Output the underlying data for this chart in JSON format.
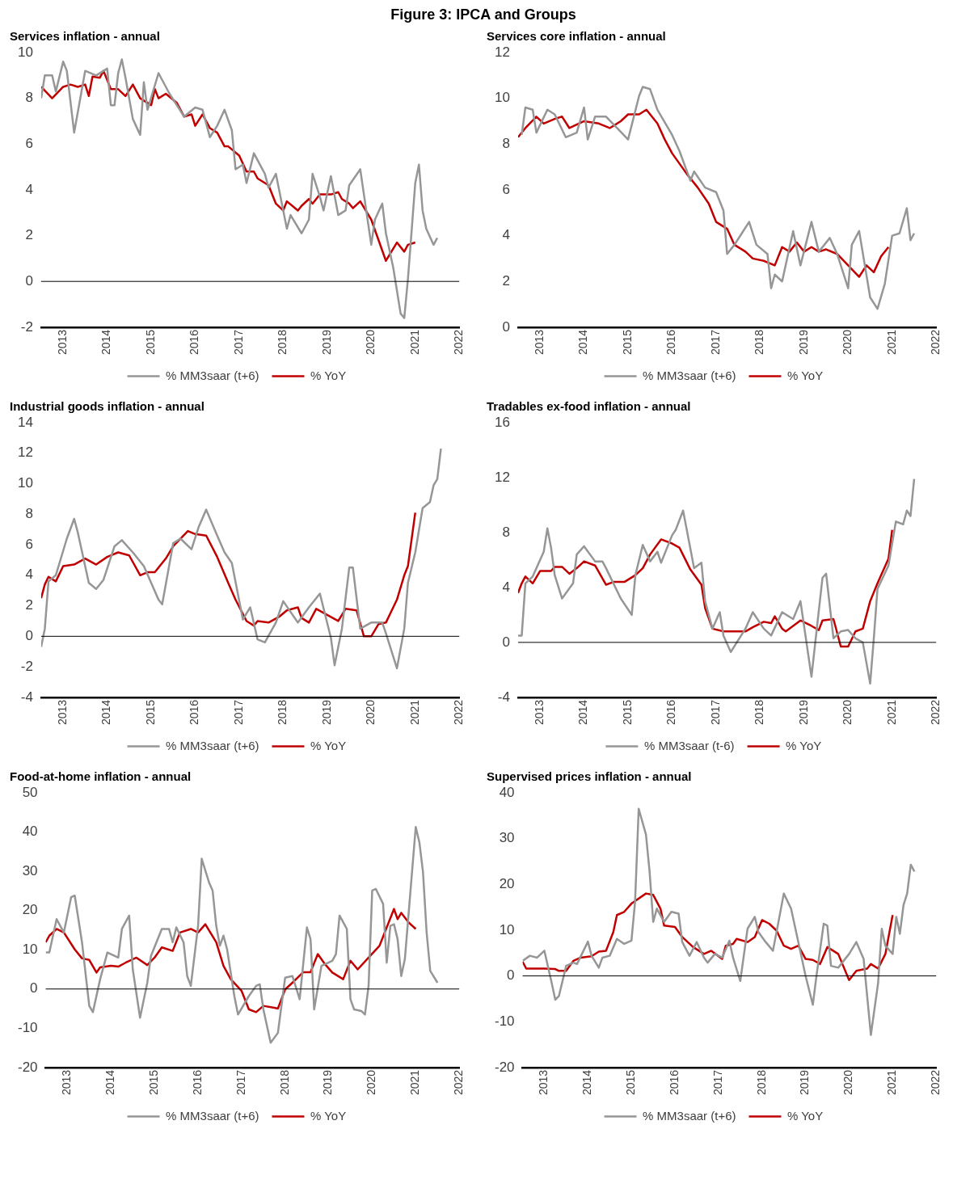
{
  "chart_data": [
    {
      "type": "line",
      "title": "Services inflation - annual",
      "annotations": [
        "Figure 3: IPCA and Groups"
      ],
      "legend": "bottom",
      "marker": "none",
      "xlim": [
        "2012-07",
        "2022-01"
      ],
      "xticks": [
        {
          "value": "2013-01",
          "label": "2013"
        },
        {
          "value": "2014-01",
          "label": "2014"
        },
        {
          "value": "2015-01",
          "label": "2015"
        },
        {
          "value": "2016-01",
          "label": "2016"
        },
        {
          "value": "2017-01",
          "label": "2017"
        },
        {
          "value": "2018-01",
          "label": "2018"
        },
        {
          "value": "2019-01",
          "label": "2019"
        },
        {
          "value": "2020-01",
          "label": "2020"
        },
        {
          "value": "2021-01",
          "label": "2021"
        },
        {
          "value": "2022-01",
          "label": "2022"
        }
      ],
      "ylim": [
        -2,
        10
      ],
      "yticks": [
        -2,
        0,
        2,
        4,
        6,
        8,
        10
      ],
      "ref_lines": [
        {
          "axis": "y",
          "value": 0,
          "color": "#000000"
        }
      ],
      "series": [
        {
          "name": "% MM3saar (t+6)",
          "color": "#969696",
          "x": [
            "2012-07",
            "2012-08",
            "2012-10",
            "2012-11",
            "2013-01",
            "2013-02",
            "2013-04",
            "2013-07",
            "2013-10",
            "2014-01",
            "2014-02",
            "2014-03",
            "2014-04",
            "2014-05",
            "2014-06",
            "2014-08",
            "2014-10",
            "2014-11",
            "2014-12",
            "2015-03",
            "2015-06",
            "2015-10",
            "2016-01",
            "2016-03",
            "2016-05",
            "2016-07",
            "2016-09",
            "2016-11",
            "2016-12",
            "2017-02",
            "2017-03",
            "2017-05",
            "2017-08",
            "2017-09",
            "2017-11",
            "2018-02",
            "2018-03",
            "2018-06",
            "2018-08",
            "2018-09",
            "2018-11",
            "2018-12",
            "2019-02",
            "2019-04",
            "2019-06",
            "2019-07",
            "2019-10",
            "2020-01",
            "2020-02",
            "2020-04",
            "2020-05",
            "2020-07",
            "2020-09",
            "2020-10",
            "2020-11",
            "2021-01",
            "2021-02",
            "2021-03",
            "2021-04",
            "2021-06",
            "2021-07"
          ],
          "values": [
            8.0,
            9.0,
            9.0,
            8.3,
            9.6,
            9.2,
            6.5,
            9.2,
            9.0,
            9.3,
            7.7,
            7.7,
            9.1,
            9.7,
            8.9,
            7.1,
            6.4,
            8.7,
            7.5,
            9.1,
            8.2,
            7.2,
            7.6,
            7.5,
            6.3,
            6.8,
            7.5,
            6.6,
            4.9,
            5.1,
            4.3,
            5.6,
            4.7,
            4.1,
            4.7,
            2.3,
            2.9,
            2.1,
            2.7,
            4.7,
            3.7,
            3.1,
            4.6,
            2.9,
            3.1,
            4.2,
            4.9,
            1.6,
            2.7,
            3.4,
            2.1,
            0.6,
            -1.4,
            -1.6,
            0.1,
            4.3,
            5.1,
            3.1,
            2.3,
            1.6,
            1.9
          ]
        },
        {
          "name": "% YoY",
          "color": "#c00000",
          "x": [
            "2012-07",
            "2012-10",
            "2013-01",
            "2013-03",
            "2013-05",
            "2013-07",
            "2013-08",
            "2013-09",
            "2013-11",
            "2013-12",
            "2014-02",
            "2014-04",
            "2014-06",
            "2014-08",
            "2014-10",
            "2015-01",
            "2015-02",
            "2015-03",
            "2015-05",
            "2015-08",
            "2015-10",
            "2015-12",
            "2016-01",
            "2016-03",
            "2016-05",
            "2016-07",
            "2016-09",
            "2016-10",
            "2017-01",
            "2017-03",
            "2017-05",
            "2017-06",
            "2017-09",
            "2017-11",
            "2018-01",
            "2018-02",
            "2018-05",
            "2018-06",
            "2018-08",
            "2018-09",
            "2018-11",
            "2019-02",
            "2019-04",
            "2019-05",
            "2019-07",
            "2019-08",
            "2019-10",
            "2020-01",
            "2020-05",
            "2020-08",
            "2020-10",
            "2020-11",
            "2021-01"
          ],
          "values": [
            8.5,
            8.0,
            8.5,
            8.6,
            8.5,
            8.6,
            8.1,
            8.95,
            8.9,
            9.2,
            8.4,
            8.4,
            8.1,
            8.6,
            8.0,
            7.7,
            8.4,
            8.0,
            8.2,
            7.8,
            7.2,
            7.3,
            6.8,
            7.3,
            6.7,
            6.5,
            5.9,
            5.9,
            5.5,
            4.8,
            4.8,
            4.5,
            4.2,
            3.4,
            3.1,
            3.5,
            3.1,
            3.3,
            3.6,
            3.4,
            3.8,
            3.8,
            3.9,
            3.6,
            3.4,
            3.2,
            3.5,
            2.7,
            0.9,
            1.7,
            1.3,
            1.6,
            1.7
          ]
        }
      ]
    },
    {
      "type": "line",
      "title": "Services core inflation - annual",
      "legend": "bottom",
      "marker": "none",
      "xlim": [
        "2012-07",
        "2022-01"
      ],
      "xticks": [
        {
          "value": "2013-01",
          "label": "2013"
        },
        {
          "value": "2014-01",
          "label": "2014"
        },
        {
          "value": "2015-01",
          "label": "2015"
        },
        {
          "value": "2016-01",
          "label": "2016"
        },
        {
          "value": "2017-01",
          "label": "2017"
        },
        {
          "value": "2018-01",
          "label": "2018"
        },
        {
          "value": "2019-01",
          "label": "2019"
        },
        {
          "value": "2020-01",
          "label": "2020"
        },
        {
          "value": "2021-01",
          "label": "2021"
        },
        {
          "value": "2022-01",
          "label": "2022"
        }
      ],
      "ylim": [
        0,
        12
      ],
      "yticks": [
        0,
        2,
        4,
        6,
        8,
        10,
        12
      ],
      "series": [
        {
          "name": "% MM3saar (t+6)",
          "color": "#969696",
          "x": [
            "2012-08",
            "2012-09",
            "2012-11",
            "2012-12",
            "2013-03",
            "2013-05",
            "2013-08",
            "2013-11",
            "2014-01",
            "2014-02",
            "2014-04",
            "2014-07",
            "2014-10",
            "2015-01",
            "2015-04",
            "2015-05",
            "2015-07",
            "2015-09",
            "2016-01",
            "2016-03",
            "2016-06",
            "2016-07",
            "2016-10",
            "2017-01",
            "2017-03",
            "2017-04",
            "2017-06",
            "2017-08",
            "2017-10",
            "2017-12",
            "2018-03",
            "2018-04",
            "2018-05",
            "2018-07",
            "2018-10",
            "2018-12",
            "2019-03",
            "2019-05",
            "2019-08",
            "2019-10",
            "2020-01",
            "2020-02",
            "2020-04",
            "2020-07",
            "2020-09",
            "2020-11",
            "2021-01",
            "2021-03",
            "2021-05",
            "2021-06",
            "2021-07"
          ],
          "values": [
            8.4,
            9.6,
            9.5,
            8.5,
            9.5,
            9.3,
            8.3,
            8.5,
            9.6,
            8.2,
            9.2,
            9.2,
            8.7,
            8.2,
            10.1,
            10.5,
            10.4,
            9.5,
            8.4,
            7.7,
            6.4,
            6.8,
            6.1,
            5.9,
            5.1,
            3.2,
            3.6,
            4.1,
            4.6,
            3.6,
            3.2,
            1.7,
            2.3,
            2.0,
            4.2,
            2.7,
            4.6,
            3.3,
            3.9,
            3.2,
            1.7,
            3.6,
            4.2,
            1.3,
            0.8,
            1.9,
            4.0,
            4.1,
            5.2,
            3.8,
            4.1
          ]
        },
        {
          "name": "% YoY",
          "color": "#c00000",
          "x": [
            "2012-07",
            "2012-09",
            "2012-12",
            "2013-02",
            "2013-05",
            "2013-07",
            "2013-09",
            "2014-01",
            "2014-05",
            "2014-08",
            "2014-11",
            "2015-01",
            "2015-04",
            "2015-06",
            "2015-09",
            "2015-11",
            "2016-01",
            "2016-05",
            "2016-08",
            "2016-11",
            "2017-01",
            "2017-04",
            "2017-06",
            "2017-09",
            "2017-11",
            "2018-02",
            "2018-05",
            "2018-07",
            "2018-09",
            "2018-11",
            "2019-01",
            "2019-03",
            "2019-05",
            "2019-07",
            "2019-10",
            "2020-01",
            "2020-04",
            "2020-06",
            "2020-08",
            "2020-10",
            "2020-12"
          ],
          "values": [
            8.3,
            8.7,
            9.2,
            8.9,
            9.1,
            9.2,
            8.7,
            9.0,
            8.9,
            8.7,
            9.0,
            9.3,
            9.3,
            9.5,
            8.9,
            8.2,
            7.6,
            6.7,
            6.1,
            5.4,
            4.6,
            4.3,
            3.6,
            3.3,
            3.0,
            2.9,
            2.7,
            3.5,
            3.3,
            3.7,
            3.3,
            3.5,
            3.3,
            3.4,
            3.2,
            2.7,
            2.2,
            2.7,
            2.4,
            3.1,
            3.5
          ]
        }
      ]
    },
    {
      "type": "line",
      "title": "Industrial goods inflation - annual",
      "legend": "bottom",
      "marker": "none",
      "xlim": [
        "2012-07",
        "2022-01"
      ],
      "xticks": [
        {
          "value": "2013-01",
          "label": "2013"
        },
        {
          "value": "2014-01",
          "label": "2014"
        },
        {
          "value": "2015-01",
          "label": "2015"
        },
        {
          "value": "2016-01",
          "label": "2016"
        },
        {
          "value": "2017-01",
          "label": "2017"
        },
        {
          "value": "2018-01",
          "label": "2018"
        },
        {
          "value": "2019-01",
          "label": "2019"
        },
        {
          "value": "2020-01",
          "label": "2020"
        },
        {
          "value": "2021-01",
          "label": "2021"
        },
        {
          "value": "2022-01",
          "label": "2022"
        }
      ],
      "ylim": [
        -4,
        14
      ],
      "yticks": [
        -4,
        -2,
        0,
        2,
        4,
        6,
        8,
        10,
        12,
        14
      ],
      "ref_lines": [
        {
          "axis": "y",
          "value": 0,
          "color": "#000000"
        }
      ],
      "series": [
        {
          "name": "% MM3saar (t+6)",
          "color": "#969696",
          "x": [
            "2012-07",
            "2012-08",
            "2012-09",
            "2012-11",
            "2013-02",
            "2013-04",
            "2013-05",
            "2013-08",
            "2013-10",
            "2013-12",
            "2014-03",
            "2014-05",
            "2014-08",
            "2014-11",
            "2015-01",
            "2015-03",
            "2015-04",
            "2015-07",
            "2015-09",
            "2015-12",
            "2016-02",
            "2016-04",
            "2016-07",
            "2016-09",
            "2016-11",
            "2017-02",
            "2017-04",
            "2017-06",
            "2017-08",
            "2017-11",
            "2018-01",
            "2018-03",
            "2018-05",
            "2018-08",
            "2018-11",
            "2019-02",
            "2019-03",
            "2019-05",
            "2019-07",
            "2019-08",
            "2019-10",
            "2020-01",
            "2020-04",
            "2020-05",
            "2020-08",
            "2020-10",
            "2020-11",
            "2021-01",
            "2021-03",
            "2021-05",
            "2021-06",
            "2021-07",
            "2021-08"
          ],
          "values": [
            -0.7,
            0.5,
            3.6,
            4.0,
            6.4,
            7.7,
            6.8,
            3.5,
            3.1,
            3.7,
            5.9,
            6.3,
            5.5,
            4.6,
            3.5,
            2.4,
            2.1,
            6.1,
            6.4,
            5.7,
            7.2,
            8.3,
            6.6,
            5.5,
            4.8,
            1.1,
            1.9,
            -0.2,
            -0.4,
            0.9,
            2.3,
            1.6,
            0.9,
            1.9,
            2.8,
            -0.1,
            -1.9,
            0.5,
            4.5,
            4.5,
            0.5,
            0.9,
            0.9,
            0.2,
            -2.1,
            0.5,
            3.5,
            5.5,
            8.4,
            8.8,
            9.9,
            10.3,
            12.3
          ]
        },
        {
          "name": "% YoY",
          "color": "#c00000",
          "x": [
            "2012-07",
            "2012-08",
            "2012-09",
            "2012-11",
            "2013-01",
            "2013-04",
            "2013-07",
            "2013-10",
            "2014-01",
            "2014-04",
            "2014-07",
            "2014-10",
            "2014-12",
            "2015-02",
            "2015-05",
            "2015-07",
            "2015-11",
            "2016-01",
            "2016-04",
            "2016-07",
            "2016-10",
            "2016-12",
            "2017-03",
            "2017-05",
            "2017-06",
            "2017-09",
            "2017-12",
            "2018-02",
            "2018-05",
            "2018-06",
            "2018-08",
            "2018-10",
            "2019-01",
            "2019-04",
            "2019-06",
            "2019-09",
            "2019-11",
            "2020-01",
            "2020-03",
            "2020-05",
            "2020-08",
            "2020-10",
            "2020-11",
            "2021-01"
          ],
          "values": [
            2.5,
            3.4,
            3.9,
            3.6,
            4.6,
            4.7,
            5.1,
            4.7,
            5.2,
            5.5,
            5.3,
            4.0,
            4.2,
            4.2,
            5.1,
            5.9,
            6.9,
            6.7,
            6.6,
            5.2,
            3.5,
            2.4,
            1.0,
            0.7,
            1.0,
            0.9,
            1.3,
            1.7,
            1.9,
            1.2,
            0.9,
            1.8,
            1.4,
            1.0,
            1.8,
            1.7,
            0.0,
            0.0,
            0.8,
            0.9,
            2.4,
            4.0,
            4.6,
            8.1
          ]
        }
      ]
    },
    {
      "type": "line",
      "title": "Tradables ex-food inflation - annual",
      "legend": "bottom",
      "marker": "none",
      "xlim": [
        "2012-07",
        "2022-01"
      ],
      "xticks": [
        {
          "value": "2013-01",
          "label": "2013"
        },
        {
          "value": "2014-01",
          "label": "2014"
        },
        {
          "value": "2015-01",
          "label": "2015"
        },
        {
          "value": "2016-01",
          "label": "2016"
        },
        {
          "value": "2017-01",
          "label": "2017"
        },
        {
          "value": "2018-01",
          "label": "2018"
        },
        {
          "value": "2019-01",
          "label": "2019"
        },
        {
          "value": "2020-01",
          "label": "2020"
        },
        {
          "value": "2021-01",
          "label": "2021"
        },
        {
          "value": "2022-01",
          "label": "2022"
        }
      ],
      "ylim": [
        -4,
        16
      ],
      "yticks": [
        -4,
        0,
        4,
        8,
        12,
        16
      ],
      "ref_lines": [
        {
          "axis": "y",
          "value": 0,
          "color": "#000000"
        }
      ],
      "series": [
        {
          "name": "% MM3saar (t-6)",
          "color": "#969696",
          "x": [
            "2012-07",
            "2012-08",
            "2012-09",
            "2012-11",
            "2013-02",
            "2013-03",
            "2013-04",
            "2013-05",
            "2013-07",
            "2013-10",
            "2013-11",
            "2014-01",
            "2014-04",
            "2014-06",
            "2014-07",
            "2014-11",
            "2015-02",
            "2015-03",
            "2015-05",
            "2015-07",
            "2015-09",
            "2015-10",
            "2016-01",
            "2016-02",
            "2016-04",
            "2016-07",
            "2016-09",
            "2016-10",
            "2016-12",
            "2017-02",
            "2017-03",
            "2017-05",
            "2017-09",
            "2017-11",
            "2018-02",
            "2018-04",
            "2018-07",
            "2018-10",
            "2018-12",
            "2019-03",
            "2019-06",
            "2019-07",
            "2019-09",
            "2019-11",
            "2020-01",
            "2020-03",
            "2020-05",
            "2020-07",
            "2020-08",
            "2020-09",
            "2020-12",
            "2021-02",
            "2021-04",
            "2021-05",
            "2021-06",
            "2021-07"
          ],
          "values": [
            0.5,
            0.5,
            4.3,
            4.8,
            6.6,
            8.3,
            6.9,
            4.9,
            3.2,
            4.3,
            6.4,
            7.0,
            5.9,
            5.9,
            5.4,
            3.2,
            2.0,
            4.9,
            7.1,
            5.9,
            6.6,
            5.8,
            7.8,
            8.2,
            9.6,
            5.4,
            5.8,
            3.0,
            1.0,
            2.2,
            0.5,
            -0.7,
            1.0,
            2.2,
            1.0,
            0.5,
            2.2,
            1.7,
            3.0,
            -2.5,
            4.7,
            5.0,
            0.3,
            0.8,
            0.9,
            0.3,
            0.0,
            -3.0,
            0.3,
            3.9,
            5.6,
            8.8,
            8.6,
            9.6,
            9.2,
            11.9
          ]
        },
        {
          "name": "% YoY",
          "color": "#c00000",
          "x": [
            "2012-07",
            "2012-08",
            "2012-09",
            "2012-11",
            "2013-01",
            "2013-04",
            "2013-05",
            "2013-07",
            "2013-09",
            "2013-11",
            "2014-01",
            "2014-04",
            "2014-07",
            "2014-09",
            "2014-12",
            "2015-03",
            "2015-05",
            "2015-07",
            "2015-10",
            "2016-01",
            "2016-03",
            "2016-06",
            "2016-09",
            "2016-10",
            "2016-12",
            "2017-03",
            "2017-05",
            "2017-09",
            "2017-11",
            "2018-02",
            "2018-04",
            "2018-05",
            "2018-07",
            "2018-08",
            "2018-12",
            "2019-03",
            "2019-05",
            "2019-06",
            "2019-09",
            "2019-11",
            "2020-01",
            "2020-03",
            "2020-05",
            "2020-07",
            "2020-09",
            "2020-12",
            "2021-01"
          ],
          "values": [
            3.6,
            4.3,
            4.8,
            4.3,
            5.2,
            5.2,
            5.5,
            5.5,
            5.0,
            5.4,
            5.9,
            5.6,
            4.2,
            4.4,
            4.4,
            4.9,
            5.4,
            6.4,
            7.5,
            7.2,
            6.9,
            5.3,
            4.2,
            2.5,
            1.0,
            0.8,
            0.8,
            0.8,
            1.1,
            1.5,
            1.4,
            1.9,
            1.0,
            0.8,
            1.6,
            1.2,
            0.9,
            1.6,
            1.7,
            -0.3,
            -0.3,
            0.8,
            1.0,
            3.0,
            4.3,
            6.1,
            8.2
          ]
        }
      ]
    },
    {
      "type": "line",
      "title": "Food-at-home inflation - annual",
      "legend": "bottom",
      "marker": "none",
      "xlim": [
        "2012-07",
        "2022-01"
      ],
      "xticks": [
        {
          "value": "2013-01",
          "label": "2013"
        },
        {
          "value": "2014-01",
          "label": "2014"
        },
        {
          "value": "2015-01",
          "label": "2015"
        },
        {
          "value": "2016-01",
          "label": "2016"
        },
        {
          "value": "2017-01",
          "label": "2017"
        },
        {
          "value": "2018-01",
          "label": "2018"
        },
        {
          "value": "2019-01",
          "label": "2019"
        },
        {
          "value": "2020-01",
          "label": "2020"
        },
        {
          "value": "2021-01",
          "label": "2021"
        },
        {
          "value": "2022-01",
          "label": "2022"
        }
      ],
      "ylim": [
        -20,
        50
      ],
      "yticks": [
        -20,
        -10,
        0,
        10,
        20,
        30,
        40,
        50
      ],
      "ref_lines": [
        {
          "axis": "y",
          "value": 0,
          "color": "#000000"
        }
      ],
      "series": [
        {
          "name": "% MM3saar (t+6)",
          "color": "#969696",
          "x": [
            "2012-07",
            "2012-08",
            "2012-10",
            "2012-12",
            "2013-02",
            "2013-03",
            "2013-05",
            "2013-07",
            "2013-08",
            "2013-10",
            "2013-12",
            "2014-03",
            "2014-04",
            "2014-06",
            "2014-07",
            "2014-09",
            "2014-11",
            "2014-12",
            "2015-03",
            "2015-05",
            "2015-06",
            "2015-07",
            "2015-09",
            "2015-10",
            "2015-11",
            "2016-01",
            "2016-02",
            "2016-04",
            "2016-05",
            "2016-06",
            "2016-07",
            "2016-08",
            "2016-09",
            "2016-11",
            "2016-12",
            "2017-03",
            "2017-05",
            "2017-06",
            "2017-07",
            "2017-09",
            "2017-11",
            "2018-01",
            "2018-03",
            "2018-05",
            "2018-07",
            "2018-08",
            "2018-09",
            "2018-11",
            "2019-02",
            "2019-03",
            "2019-04",
            "2019-06",
            "2019-07",
            "2019-08",
            "2019-10",
            "2019-11",
            "2019-12",
            "2020-01",
            "2020-02",
            "2020-04",
            "2020-05",
            "2020-06",
            "2020-07",
            "2020-08",
            "2020-09",
            "2020-10",
            "2021-01",
            "2021-02",
            "2021-03",
            "2021-04",
            "2021-05",
            "2021-07"
          ],
          "values": [
            9.3,
            9.3,
            17.8,
            14.4,
            23.4,
            23.8,
            11.9,
            -4.3,
            -5.9,
            2.5,
            9.3,
            8.0,
            15.3,
            18.7,
            5.0,
            -7.3,
            1.6,
            8.4,
            15.3,
            15.3,
            11.9,
            15.7,
            11.9,
            3.3,
            0.8,
            16.1,
            33.2,
            27.2,
            25.1,
            16.1,
            11.0,
            13.6,
            10.1,
            -1.8,
            -6.5,
            -1.8,
            0.8,
            1.2,
            -5.2,
            -13.7,
            -11.2,
            2.9,
            3.3,
            -2.6,
            15.7,
            12.7,
            -5.2,
            5.9,
            7.2,
            8.9,
            18.7,
            15.3,
            -2.6,
            -5.2,
            -5.6,
            -6.5,
            0.8,
            25.1,
            25.5,
            21.7,
            6.7,
            16.1,
            16.5,
            12.7,
            3.3,
            7.6,
            41.3,
            37.4,
            29.8,
            14.4,
            4.6,
            1.6
          ]
        },
        {
          "name": "% YoY",
          "color": "#c00000",
          "x": [
            "2012-07",
            "2012-08",
            "2012-10",
            "2012-12",
            "2013-03",
            "2013-05",
            "2013-07",
            "2013-09",
            "2013-10",
            "2014-01",
            "2014-03",
            "2014-05",
            "2014-08",
            "2014-11",
            "2015-01",
            "2015-03",
            "2015-06",
            "2015-08",
            "2015-11",
            "2016-01",
            "2016-03",
            "2016-06",
            "2016-08",
            "2016-10",
            "2017-01",
            "2017-03",
            "2017-05",
            "2017-07",
            "2017-10",
            "2017-11",
            "2018-01",
            "2018-03",
            "2018-06",
            "2018-08",
            "2018-10",
            "2018-12",
            "2019-02",
            "2019-05",
            "2019-07",
            "2019-09",
            "2019-12",
            "2020-03",
            "2020-05",
            "2020-07",
            "2020-08",
            "2020-09",
            "2020-11",
            "2021-01"
          ],
          "values": [
            11.9,
            13.6,
            15.3,
            14.4,
            10.1,
            7.8,
            7.4,
            4.2,
            5.5,
            5.9,
            5.7,
            6.7,
            8.0,
            6.1,
            8.0,
            10.6,
            9.7,
            14.4,
            15.3,
            14.4,
            16.5,
            11.9,
            5.9,
            2.5,
            -0.5,
            -5.2,
            -5.9,
            -4.3,
            -4.8,
            -5.0,
            -0.1,
            1.6,
            4.3,
            4.3,
            8.9,
            6.3,
            4.2,
            2.5,
            7.2,
            5.0,
            8.0,
            11.0,
            15.7,
            20.4,
            17.8,
            19.4,
            17.0,
            15.3
          ]
        }
      ]
    },
    {
      "type": "line",
      "title": "Supervised prices inflation - annual",
      "legend": "bottom",
      "marker": "none",
      "xlim": [
        "2012-07",
        "2022-01"
      ],
      "xticks": [
        {
          "value": "2013-01",
          "label": "2013"
        },
        {
          "value": "2014-01",
          "label": "2014"
        },
        {
          "value": "2015-01",
          "label": "2015"
        },
        {
          "value": "2016-01",
          "label": "2016"
        },
        {
          "value": "2017-01",
          "label": "2017"
        },
        {
          "value": "2018-01",
          "label": "2018"
        },
        {
          "value": "2019-01",
          "label": "2019"
        },
        {
          "value": "2020-01",
          "label": "2020"
        },
        {
          "value": "2021-01",
          "label": "2021"
        },
        {
          "value": "2022-01",
          "label": "2022"
        }
      ],
      "ylim": [
        -20,
        40
      ],
      "yticks": [
        -20,
        -10,
        0,
        10,
        20,
        30,
        40
      ],
      "ref_lines": [
        {
          "axis": "y",
          "value": 0,
          "color": "#000000"
        }
      ],
      "series": [
        {
          "name": "% MM3saar (t+6)",
          "color": "#969696",
          "x": [
            "2012-07",
            "2012-09",
            "2012-11",
            "2013-01",
            "2013-03",
            "2013-04",
            "2013-05",
            "2013-07",
            "2013-09",
            "2013-10",
            "2014-01",
            "2014-02",
            "2014-04",
            "2014-05",
            "2014-07",
            "2014-09",
            "2014-11",
            "2015-01",
            "2015-02",
            "2015-03",
            "2015-05",
            "2015-06",
            "2015-07",
            "2015-08",
            "2015-10",
            "2015-12",
            "2016-02",
            "2016-03",
            "2016-05",
            "2016-07",
            "2016-09",
            "2016-10",
            "2016-12",
            "2017-02",
            "2017-04",
            "2017-05",
            "2017-07",
            "2017-09",
            "2017-11",
            "2017-12",
            "2018-02",
            "2018-04",
            "2018-05",
            "2018-07",
            "2018-09",
            "2018-11",
            "2019-01",
            "2019-03",
            "2019-04",
            "2019-06",
            "2019-07",
            "2019-08",
            "2019-10",
            "2020-01",
            "2020-03",
            "2020-05",
            "2020-07",
            "2020-09",
            "2020-10",
            "2020-11",
            "2021-01",
            "2021-02",
            "2021-03",
            "2021-04",
            "2021-05",
            "2021-06",
            "2021-07"
          ],
          "values": [
            3.3,
            4.4,
            4.0,
            5.5,
            -1.5,
            -5.2,
            -4.4,
            2.2,
            2.9,
            2.6,
            7.5,
            4.4,
            1.8,
            4.0,
            4.4,
            8.1,
            7.0,
            7.7,
            16.2,
            36.5,
            30.9,
            22.8,
            11.8,
            14.7,
            11.8,
            14.0,
            13.6,
            7.4,
            4.4,
            7.4,
            4.0,
            2.9,
            4.8,
            4.0,
            7.7,
            4.0,
            -1.1,
            10.3,
            12.9,
            9.6,
            7.4,
            5.5,
            9.6,
            18.0,
            14.7,
            7.4,
            0.0,
            -6.3,
            0.0,
            11.4,
            11.0,
            2.2,
            1.8,
            4.8,
            7.4,
            3.7,
            -12.9,
            -1.5,
            10.3,
            6.6,
            4.8,
            12.9,
            9.2,
            15.5,
            18.0,
            24.3,
            22.8
          ]
        },
        {
          "name": "% YoY",
          "color": "#c00000",
          "x": [
            "2012-07",
            "2012-08",
            "2013-01",
            "2013-04",
            "2013-05",
            "2013-07",
            "2013-09",
            "2013-11",
            "2014-02",
            "2014-04",
            "2014-06",
            "2014-08",
            "2014-09",
            "2014-11",
            "2015-01",
            "2015-05",
            "2015-07",
            "2015-09",
            "2015-10",
            "2016-01",
            "2016-03",
            "2016-06",
            "2016-09",
            "2016-11",
            "2017-02",
            "2017-03",
            "2017-05",
            "2017-06",
            "2017-09",
            "2017-11",
            "2018-01",
            "2018-03",
            "2018-05",
            "2018-07",
            "2018-09",
            "2018-11",
            "2019-01",
            "2019-03",
            "2019-05",
            "2019-07",
            "2019-10",
            "2020-01",
            "2020-03",
            "2020-06",
            "2020-07",
            "2020-09",
            "2020-11",
            "2021-01"
          ],
          "values": [
            3.1,
            1.6,
            1.6,
            1.5,
            1.1,
            1.1,
            3.3,
            4.0,
            4.3,
            5.3,
            5.5,
            9.6,
            13.3,
            14.0,
            15.8,
            18.0,
            17.7,
            14.7,
            11.0,
            10.7,
            8.5,
            6.3,
            4.8,
            5.5,
            3.7,
            6.6,
            7.0,
            8.1,
            7.4,
            8.5,
            12.2,
            11.4,
            9.9,
            6.6,
            5.9,
            6.6,
            3.7,
            3.5,
            2.6,
            6.3,
            4.8,
            -0.9,
            1.1,
            1.6,
            2.6,
            1.6,
            4.8,
            13.3
          ]
        }
      ]
    }
  ]
}
